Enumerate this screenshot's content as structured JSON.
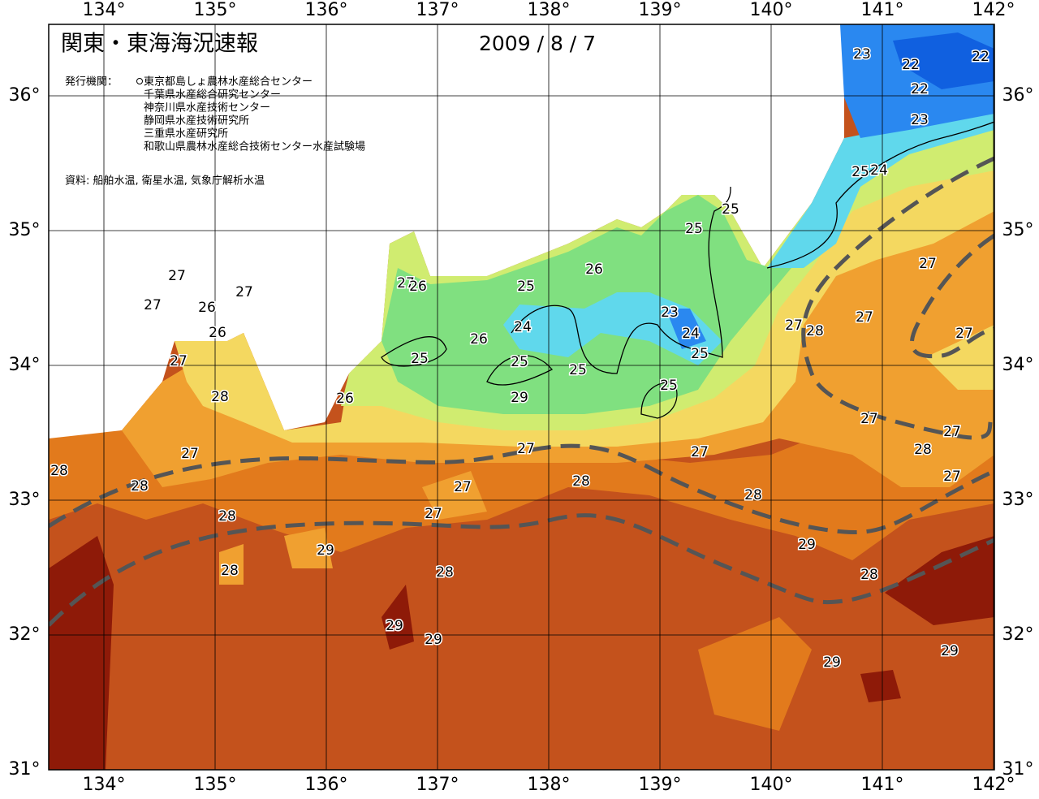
{
  "header": {
    "title": "関東・東海海況速報",
    "date": "2009 / 8 / 7"
  },
  "publishers": {
    "label": "発行機関：",
    "items": [
      "東京都島しょ農林水産総合センター",
      "千葉県水産総合研究センター",
      "神奈川県水産技術センター",
      "静岡県水産技術研究所",
      "三重県水産研究所",
      "和歌山県農林水産総合技術センター水産試験場"
    ]
  },
  "source": "資料: 船舶水温, 衛星水温, 気象庁解析水温",
  "axes": {
    "lon_labels": [
      "134°",
      "135°",
      "136°",
      "137°",
      "138°",
      "139°",
      "140°",
      "141°",
      "142°"
    ],
    "lat_labels": [
      "36°",
      "35°",
      "34°",
      "33°",
      "32°",
      "31°"
    ]
  },
  "contour_labels": [
    "23",
    "22",
    "22",
    "22",
    "23",
    "25",
    "24",
    "25",
    "25",
    "27",
    "26",
    "27",
    "26",
    "25",
    "27",
    "27",
    "27",
    "26",
    "26",
    "23",
    "24",
    "24",
    "26",
    "27",
    "27",
    "28",
    "27",
    "25",
    "25",
    "25",
    "25",
    "27",
    "25",
    "28",
    "26",
    "27",
    "27",
    "27",
    "27",
    "27",
    "28",
    "28",
    "28",
    "27",
    "28",
    "27",
    "28",
    "27",
    "28",
    "29",
    "29",
    "28",
    "28",
    "28",
    "29",
    "29",
    "29",
    "29",
    "29"
  ]
}
